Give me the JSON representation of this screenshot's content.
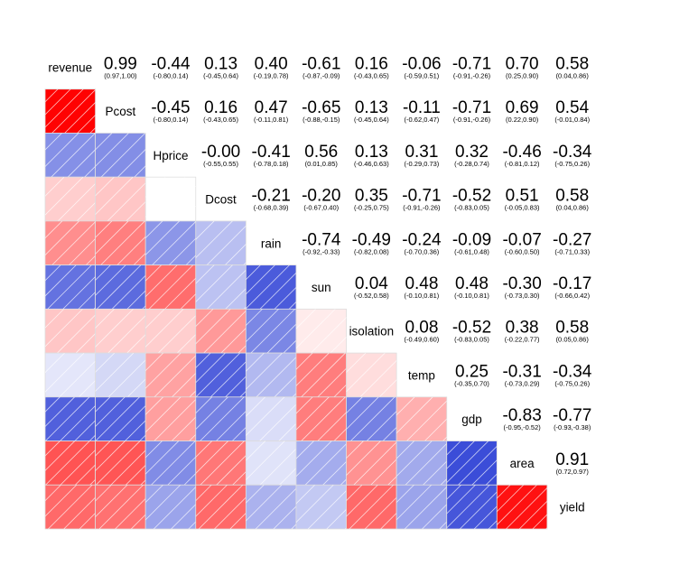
{
  "chart_data": {
    "type": "heatmap",
    "variables": [
      "revenue",
      "Pcost",
      "Hprice",
      "Dcost",
      "rain",
      "sun",
      "isolation",
      "temp",
      "gdp",
      "area",
      "yield"
    ],
    "lower_panel": "shade",
    "upper_panel": "pie",
    "color_scale": {
      "negative": "#00008B",
      "zero": "#FFFFFF",
      "positive": "#FF0000"
    },
    "upper": [
      {
        "row": "revenue",
        "col": "Pcost",
        "r": "0.99",
        "ci": "(0.97,1.00)"
      },
      {
        "row": "revenue",
        "col": "Hprice",
        "r": "-0.44",
        "ci": "(-0.80,0.14)"
      },
      {
        "row": "revenue",
        "col": "Dcost",
        "r": "0.13",
        "ci": "(-0.45,0.64)"
      },
      {
        "row": "revenue",
        "col": "rain",
        "r": "0.40",
        "ci": "(-0.19,0.78)"
      },
      {
        "row": "revenue",
        "col": "sun",
        "r": "-0.61",
        "ci": "(-0.87,-0.09)"
      },
      {
        "row": "revenue",
        "col": "isolation",
        "r": "0.16",
        "ci": "(-0.43,0.65)"
      },
      {
        "row": "revenue",
        "col": "temp",
        "r": "-0.06",
        "ci": "(-0.59,0.51)"
      },
      {
        "row": "revenue",
        "col": "gdp",
        "r": "-0.71",
        "ci": "(-0.91,-0.26)"
      },
      {
        "row": "revenue",
        "col": "area",
        "r": "0.70",
        "ci": "(0.25,0.90)"
      },
      {
        "row": "revenue",
        "col": "yield",
        "r": "0.58",
        "ci": "(0.04,0.86)"
      },
      {
        "row": "Pcost",
        "col": "Hprice",
        "r": "-0.45",
        "ci": "(-0.80,0.14)"
      },
      {
        "row": "Pcost",
        "col": "Dcost",
        "r": "0.16",
        "ci": "(-0.43,0.65)"
      },
      {
        "row": "Pcost",
        "col": "rain",
        "r": "0.47",
        "ci": "(-0.11,0.81)"
      },
      {
        "row": "Pcost",
        "col": "sun",
        "r": "-0.65",
        "ci": "(-0.88,-0.15)"
      },
      {
        "row": "Pcost",
        "col": "isolation",
        "r": "0.13",
        "ci": "(-0.45,0.64)"
      },
      {
        "row": "Pcost",
        "col": "temp",
        "r": "-0.11",
        "ci": "(-0.62,0.47)"
      },
      {
        "row": "Pcost",
        "col": "gdp",
        "r": "-0.71",
        "ci": "(-0.91,-0.26)"
      },
      {
        "row": "Pcost",
        "col": "area",
        "r": "0.69",
        "ci": "(0.22,0.90)"
      },
      {
        "row": "Pcost",
        "col": "yield",
        "r": "0.54",
        "ci": "(-0.01,0.84)"
      },
      {
        "row": "Hprice",
        "col": "Dcost",
        "r": "-0.00",
        "ci": "(-0.55,0.55)"
      },
      {
        "row": "Hprice",
        "col": "rain",
        "r": "-0.41",
        "ci": "(-0.78,0.18)"
      },
      {
        "row": "Hprice",
        "col": "sun",
        "r": "0.56",
        "ci": "(0.01,0.85)"
      },
      {
        "row": "Hprice",
        "col": "isolation",
        "r": "0.13",
        "ci": "(-0.46,0.63)"
      },
      {
        "row": "Hprice",
        "col": "temp",
        "r": "0.31",
        "ci": "(-0.29,0.73)"
      },
      {
        "row": "Hprice",
        "col": "gdp",
        "r": "0.32",
        "ci": "(-0.28,0.74)"
      },
      {
        "row": "Hprice",
        "col": "area",
        "r": "-0.46",
        "ci": "(-0.81,0.12)"
      },
      {
        "row": "Hprice",
        "col": "yield",
        "r": "-0.34",
        "ci": "(-0.75,0.26)"
      },
      {
        "row": "Dcost",
        "col": "rain",
        "r": "-0.21",
        "ci": "(-0.68,0.39)"
      },
      {
        "row": "Dcost",
        "col": "sun",
        "r": "-0.20",
        "ci": "(-0.67,0.40)"
      },
      {
        "row": "Dcost",
        "col": "isolation",
        "r": "0.35",
        "ci": "(-0.25,0.75)"
      },
      {
        "row": "Dcost",
        "col": "temp",
        "r": "-0.71",
        "ci": "(-0.91,-0.26)"
      },
      {
        "row": "Dcost",
        "col": "gdp",
        "r": "-0.52",
        "ci": "(-0.83,0.05)"
      },
      {
        "row": "Dcost",
        "col": "area",
        "r": "0.51",
        "ci": "(-0.05,0.83)"
      },
      {
        "row": "Dcost",
        "col": "yield",
        "r": "0.58",
        "ci": "(0.04,0.86)"
      },
      {
        "row": "rain",
        "col": "sun",
        "r": "-0.74",
        "ci": "(-0.92,-0.33)"
      },
      {
        "row": "rain",
        "col": "isolation",
        "r": "-0.49",
        "ci": "(-0.82,0.08)"
      },
      {
        "row": "rain",
        "col": "temp",
        "r": "-0.24",
        "ci": "(-0.70,0.36)"
      },
      {
        "row": "rain",
        "col": "gdp",
        "r": "-0.09",
        "ci": "(-0.61,0.48)"
      },
      {
        "row": "rain",
        "col": "area",
        "r": "-0.07",
        "ci": "(-0.60,0.50)"
      },
      {
        "row": "rain",
        "col": "yield",
        "r": "-0.27",
        "ci": "(-0.71,0.33)"
      },
      {
        "row": "sun",
        "col": "isolation",
        "r": "0.04",
        "ci": "(-0.52,0.58)"
      },
      {
        "row": "sun",
        "col": "temp",
        "r": "0.48",
        "ci": "(-0.10,0.81)"
      },
      {
        "row": "sun",
        "col": "gdp",
        "r": "0.48",
        "ci": "(-0.10,0.81)"
      },
      {
        "row": "sun",
        "col": "area",
        "r": "-0.30",
        "ci": "(-0.73,0.30)"
      },
      {
        "row": "sun",
        "col": "yield",
        "r": "-0.17",
        "ci": "(-0.66,0.42)"
      },
      {
        "row": "isolation",
        "col": "temp",
        "r": "0.08",
        "ci": "(-0.49,0.60)"
      },
      {
        "row": "isolation",
        "col": "gdp",
        "r": "-0.52",
        "ci": "(-0.83,0.05)"
      },
      {
        "row": "isolation",
        "col": "area",
        "r": "0.38",
        "ci": "(-0.22,0.77)"
      },
      {
        "row": "isolation",
        "col": "yield",
        "r": "0.58",
        "ci": "(0.05,0.86)"
      },
      {
        "row": "temp",
        "col": "gdp",
        "r": "0.25",
        "ci": "(-0.35,0.70)"
      },
      {
        "row": "temp",
        "col": "area",
        "r": "-0.31",
        "ci": "(-0.73,0.29)"
      },
      {
        "row": "temp",
        "col": "yield",
        "r": "-0.34",
        "ci": "(-0.75,0.26)"
      },
      {
        "row": "gdp",
        "col": "area",
        "r": "-0.83",
        "ci": "(-0.95,-0.52)"
      },
      {
        "row": "gdp",
        "col": "yield",
        "r": "-0.77",
        "ci": "(-0.93,-0.38)"
      },
      {
        "row": "area",
        "col": "yield",
        "r": "0.91",
        "ci": "(0.72,0.97)"
      }
    ]
  }
}
